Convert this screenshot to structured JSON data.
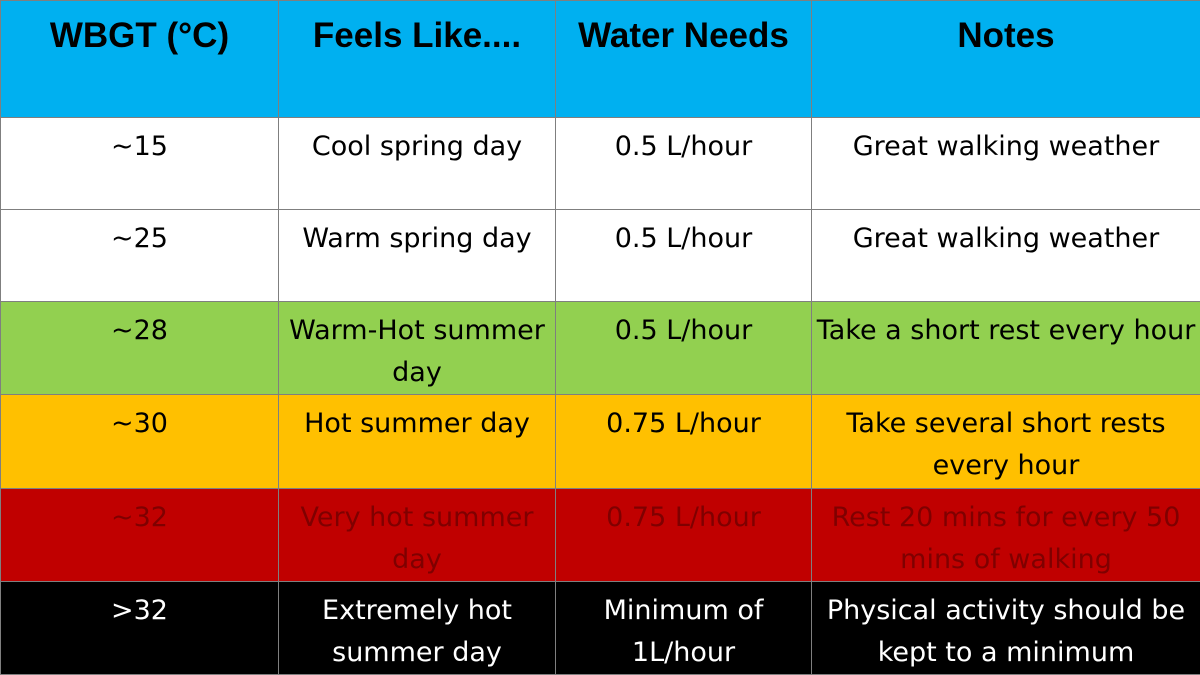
{
  "colors": {
    "header": "#00b0f0",
    "white": "#ffffff",
    "green": "#92d050",
    "amber": "#ffc000",
    "red": "#c00000",
    "black": "#000000",
    "text_dark": "#000000",
    "text_on_red": "#7f0000",
    "text_on_black": "#ffffff",
    "grid": "#7f7f7f"
  },
  "table": {
    "headers": [
      "WBGT (°C)",
      "Feels Like....",
      "Water Needs",
      "Notes"
    ],
    "rows": [
      {
        "wbgt": "~15",
        "feels_like": "Cool spring day",
        "water": "0.5 L/hour",
        "notes": "Great walking weather",
        "band": "white"
      },
      {
        "wbgt": "~25",
        "feels_like": "Warm spring day",
        "water": "0.5 L/hour",
        "notes": "Great walking weather",
        "band": "white"
      },
      {
        "wbgt": "~28",
        "feels_like": "Warm-Hot summer day",
        "water": "0.5 L/hour",
        "notes": "Take a short rest every hour",
        "band": "green"
      },
      {
        "wbgt": "~30",
        "feels_like": "Hot summer day",
        "water": "0.75 L/hour",
        "notes": "Take several short rests every hour",
        "band": "amber"
      },
      {
        "wbgt": "~32",
        "feels_like": "Very hot summer day",
        "water": "0.75 L/hour",
        "notes": "Rest 20 mins for every 50 mins of walking",
        "band": "red"
      },
      {
        "wbgt": ">32",
        "feels_like": "Extremely hot summer day",
        "water": "Minimum of 1L/hour",
        "notes": "Physical activity should be kept to a minimum",
        "band": "black"
      }
    ]
  }
}
